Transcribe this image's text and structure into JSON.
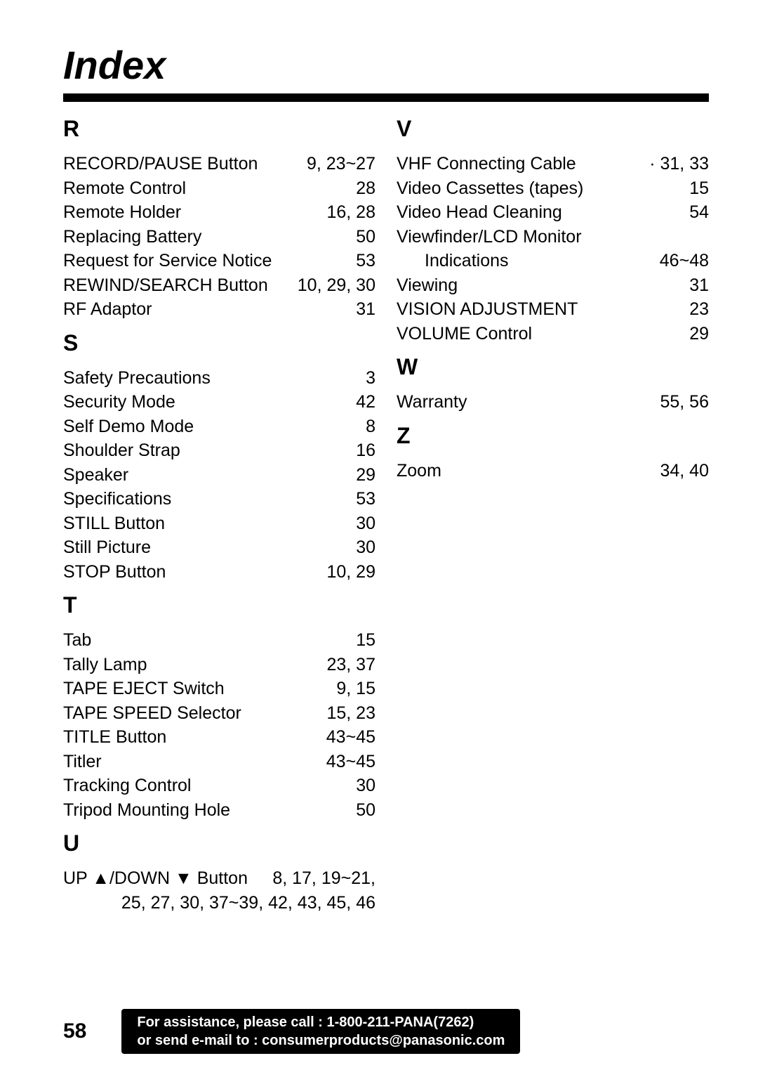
{
  "title": "Index",
  "page_number": "58",
  "footer_line1": "For assistance, please call : 1-800-211-PANA(7262)",
  "footer_line2": "or send e-mail to : consumerproducts@panasonic.com",
  "left_sections": [
    {
      "letter": "R",
      "entries": [
        {
          "term": "RECORD/PAUSE Button",
          "pages": "9, 23~27"
        },
        {
          "term": "Remote Control",
          "pages": "28"
        },
        {
          "term": "Remote Holder",
          "pages": "16, 28"
        },
        {
          "term": "Replacing Battery",
          "pages": "50"
        },
        {
          "term": "Request for Service Notice",
          "pages": "53"
        },
        {
          "term": "REWIND/SEARCH Button",
          "pages": "10, 29, 30"
        },
        {
          "term": "RF Adaptor",
          "pages": "31"
        }
      ]
    },
    {
      "letter": "S",
      "entries": [
        {
          "term": "Safety Precautions",
          "pages": "3"
        },
        {
          "term": "Security Mode",
          "pages": "42"
        },
        {
          "term": "Self Demo Mode",
          "pages": "8"
        },
        {
          "term": "Shoulder Strap",
          "pages": "16"
        },
        {
          "term": "Speaker",
          "pages": "29"
        },
        {
          "term": "Specifications",
          "pages": "53"
        },
        {
          "term": "STILL Button",
          "pages": "30"
        },
        {
          "term": "Still Picture",
          "pages": "30"
        },
        {
          "term": "STOP Button",
          "pages": "10,  29"
        }
      ]
    },
    {
      "letter": "T",
      "entries": [
        {
          "term": "Tab",
          "pages": "15"
        },
        {
          "term": "Tally Lamp",
          "pages": "23, 37"
        },
        {
          "term": "TAPE EJECT Switch",
          "pages": "9, 15"
        },
        {
          "term": "TAPE SPEED Selector",
          "pages": "15, 23"
        },
        {
          "term": "TITLE Button",
          "pages": "43~45"
        },
        {
          "term": "Titler",
          "pages": "43~45"
        },
        {
          "term": "Tracking Control",
          "pages": "30"
        },
        {
          "term": "Tripod Mounting Hole",
          "pages": "50"
        }
      ]
    }
  ],
  "u_section": {
    "letter": "U",
    "term": "UP ▲/DOWN ▼ Button",
    "pages_first": "8, 17, 19~21,",
    "pages_cont": "25, 27, 30, 37~39, 42, 43, 45, 46"
  },
  "right_sections": [
    {
      "letter": "V",
      "entries": [
        {
          "term": "VHF Connecting Cable",
          "pages": "·   31, 33"
        },
        {
          "term": "Video Cassettes (tapes)",
          "pages": "15"
        },
        {
          "term": "Video Head Cleaning",
          "pages": "54"
        },
        {
          "term": "Viewfinder/LCD Monitor",
          "pages": ""
        },
        {
          "term": "Indications",
          "pages": "46~48",
          "indent": true
        },
        {
          "term": "Viewing",
          "pages": "31"
        },
        {
          "term": "VISION ADJUSTMENT",
          "pages": "23"
        },
        {
          "term": "VOLUME Control",
          "pages": "29"
        }
      ]
    },
    {
      "letter": "W",
      "entries": [
        {
          "term": "Warranty",
          "pages": "55, 56"
        }
      ]
    },
    {
      "letter": "Z",
      "entries": [
        {
          "term": "Zoom",
          "pages": "34, 40"
        }
      ]
    }
  ]
}
